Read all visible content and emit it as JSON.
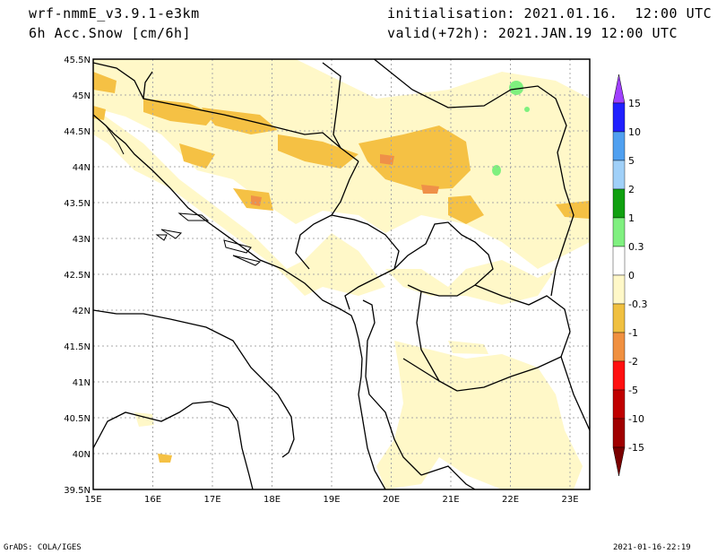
{
  "header": {
    "model": "wrf-nmmE_v3.9.1-e3km",
    "field": "6h Acc.Snow [cm/6h]",
    "init": "initialisation: 2021.01.16.  12:00 UTC",
    "valid": "valid(+72h): 2021.JAN.19 12:00 UTC"
  },
  "footer": {
    "left": "GrADS: COLA/IGES",
    "right": "2021-01-16-22:19"
  },
  "map": {
    "lat_labels": [
      "45.5N",
      "45N",
      "44.5N",
      "44N",
      "43.5N",
      "43N",
      "42.5N",
      "42N",
      "41.5N",
      "41N",
      "40.5N",
      "40N",
      "39.5N"
    ],
    "lon_labels": [
      "15E",
      "16E",
      "17E",
      "18E",
      "19E",
      "20E",
      "21E",
      "22E",
      "23E"
    ]
  },
  "colorbar": {
    "labels": [
      "15",
      "10",
      "5",
      "2",
      "1",
      "0.3",
      "0",
      "-0.3",
      "-1",
      "-2",
      "-5",
      "-10",
      "-15"
    ],
    "colors": [
      "#2020ff",
      "#50a0f0",
      "#a0d0f8",
      "#10a010",
      "#80f080",
      "#ffffff",
      "#fff8c8",
      "#f0c040",
      "#f09040",
      "#ff1010",
      "#c00000",
      "#a00000",
      "#800000"
    ],
    "top_arrow_color": "#a040ff",
    "bottom_arrow_color": "#7a0000"
  },
  "colors": {
    "snow_light": "#fff8c8",
    "snow_mid": "#f5c144",
    "snow_heavy": "#ef9048",
    "green": "#7ef07e",
    "border": "#000000"
  }
}
